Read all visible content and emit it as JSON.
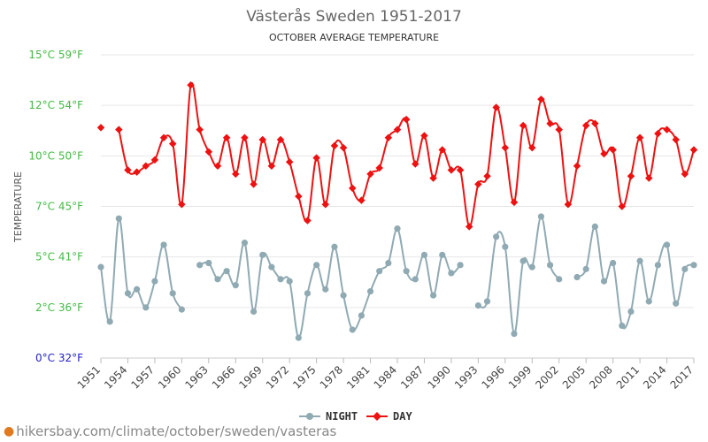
{
  "chart_data": {
    "type": "line",
    "title": "Västerås Sweden 1951-2017",
    "subtitle": "OCTOBER AVERAGE TEMPERATURE",
    "ylabel": "TEMPERATURE",
    "ylim": [
      0,
      15
    ],
    "y_ticks": [
      {
        "value": 0,
        "label": "0°C 32°F",
        "color": "#2222cc"
      },
      {
        "value": 2.5,
        "label": "2°C 36°F",
        "color": "#44bb44"
      },
      {
        "value": 5,
        "label": "5°C 41°F",
        "color": "#44bb44"
      },
      {
        "value": 7.5,
        "label": "7°C 45°F",
        "color": "#44bb44"
      },
      {
        "value": 10,
        "label": "10°C 50°F",
        "color": "#44bb44"
      },
      {
        "value": 12.5,
        "label": "12°C 54°F",
        "color": "#44bb44"
      },
      {
        "value": 15,
        "label": "15°C 59°F",
        "color": "#44bb44"
      }
    ],
    "x_start": 1951,
    "x_end": 2017,
    "x_ticks": [
      1951,
      1954,
      1957,
      1960,
      1963,
      1966,
      1969,
      1972,
      1975,
      1978,
      1981,
      1984,
      1987,
      1990,
      1993,
      1996,
      1999,
      2002,
      2005,
      2008,
      2011,
      2014,
      2017
    ],
    "series": [
      {
        "name": "NIGHT",
        "color": "#90aab3",
        "values": [
          4.5,
          1.8,
          6.9,
          3.2,
          3.4,
          2.5,
          3.8,
          5.6,
          3.2,
          2.4,
          null,
          4.6,
          4.7,
          3.9,
          4.3,
          3.6,
          5.7,
          2.3,
          5.1,
          4.5,
          3.9,
          3.8,
          1.0,
          3.2,
          4.6,
          3.4,
          5.5,
          3.1,
          1.4,
          2.1,
          3.3,
          4.3,
          4.7,
          6.4,
          4.3,
          3.9,
          5.1,
          3.1,
          5.1,
          4.2,
          4.6,
          null,
          2.6,
          2.8,
          6.0,
          5.5,
          1.2,
          4.8,
          4.5,
          7.0,
          4.6,
          3.9,
          null,
          4.0,
          4.4,
          6.5,
          3.8,
          4.7,
          1.6,
          2.3,
          4.8,
          2.8,
          4.6,
          5.6,
          2.7,
          4.4,
          4.6
        ]
      },
      {
        "name": "DAY",
        "color": "#ee1111",
        "values": [
          11.4,
          null,
          11.3,
          9.3,
          9.2,
          9.5,
          9.8,
          10.9,
          10.6,
          7.6,
          13.5,
          11.3,
          10.2,
          9.5,
          10.9,
          9.1,
          10.9,
          8.6,
          10.8,
          9.5,
          10.8,
          9.7,
          8.0,
          6.8,
          9.9,
          7.6,
          10.5,
          10.4,
          8.4,
          7.8,
          9.1,
          9.4,
          10.9,
          11.3,
          11.8,
          9.6,
          11.0,
          8.9,
          10.3,
          9.3,
          9.3,
          6.5,
          8.6,
          9.0,
          12.4,
          10.4,
          7.7,
          11.5,
          10.4,
          12.8,
          11.6,
          11.3,
          7.6,
          9.5,
          11.5,
          11.6,
          10.1,
          10.3,
          7.5,
          9.0,
          10.9,
          8.9,
          11.1,
          11.3,
          10.8,
          9.1,
          10.3
        ]
      }
    ],
    "legend_position": "bottom-center"
  },
  "footer": {
    "text": "hikersbay.com/climate/october/sweden/vasteras",
    "pin_icon": "location-pin-icon"
  }
}
